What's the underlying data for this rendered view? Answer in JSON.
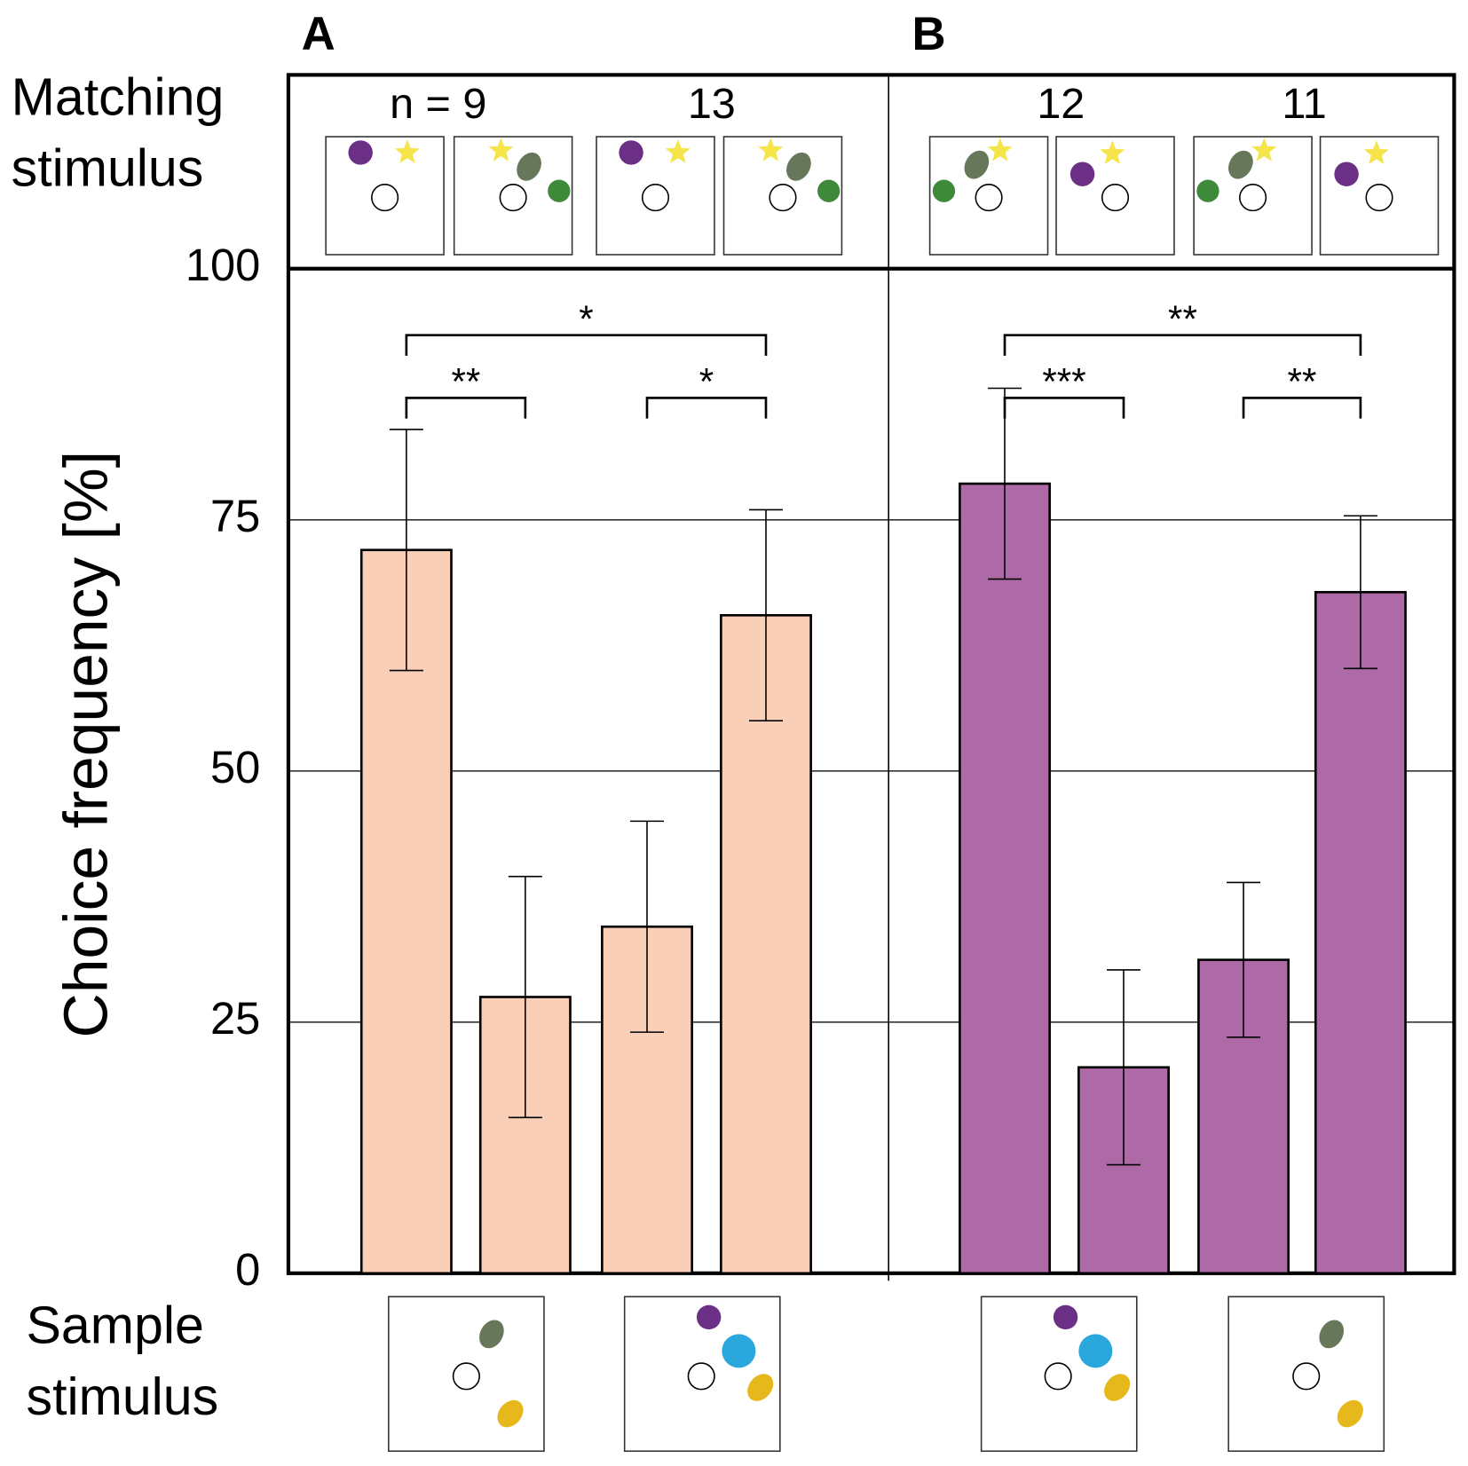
{
  "chart_data": {
    "type": "bar",
    "ylabel": "Choice frequency [%]",
    "matching_label": [
      "Matching",
      "stimulus"
    ],
    "sample_label": [
      "Sample",
      "stimulus"
    ],
    "ylim": [
      0,
      100
    ],
    "yticks": [
      0,
      25,
      50,
      75,
      100
    ],
    "grid": true,
    "panels": [
      {
        "label": "A",
        "color": "#f9cfb8",
        "n_labels": [
          "n = 9",
          "13"
        ],
        "values": [
          72,
          27.5,
          34.5,
          65.5
        ],
        "errors": [
          12,
          12,
          10.5,
          10.5
        ],
        "brackets": [
          {
            "bars": [
              0,
              1
            ],
            "label": "**"
          },
          {
            "bars": [
              2,
              3
            ],
            "label": "*"
          },
          {
            "bars": [
              0,
              3
            ],
            "label": "*"
          }
        ]
      },
      {
        "label": "B",
        "color": "#ad6aa6",
        "n_labels": [
          "12",
          "11"
        ],
        "values": [
          78.6,
          20.5,
          31.2,
          67.8
        ],
        "errors": [
          9.5,
          9.7,
          7.7,
          7.6
        ],
        "brackets": [
          {
            "bars": [
              0,
              1
            ],
            "label": "***"
          },
          {
            "bars": [
              2,
              3
            ],
            "label": "**"
          },
          {
            "bars": [
              0,
              3
            ],
            "label": "**"
          }
        ]
      }
    ]
  }
}
